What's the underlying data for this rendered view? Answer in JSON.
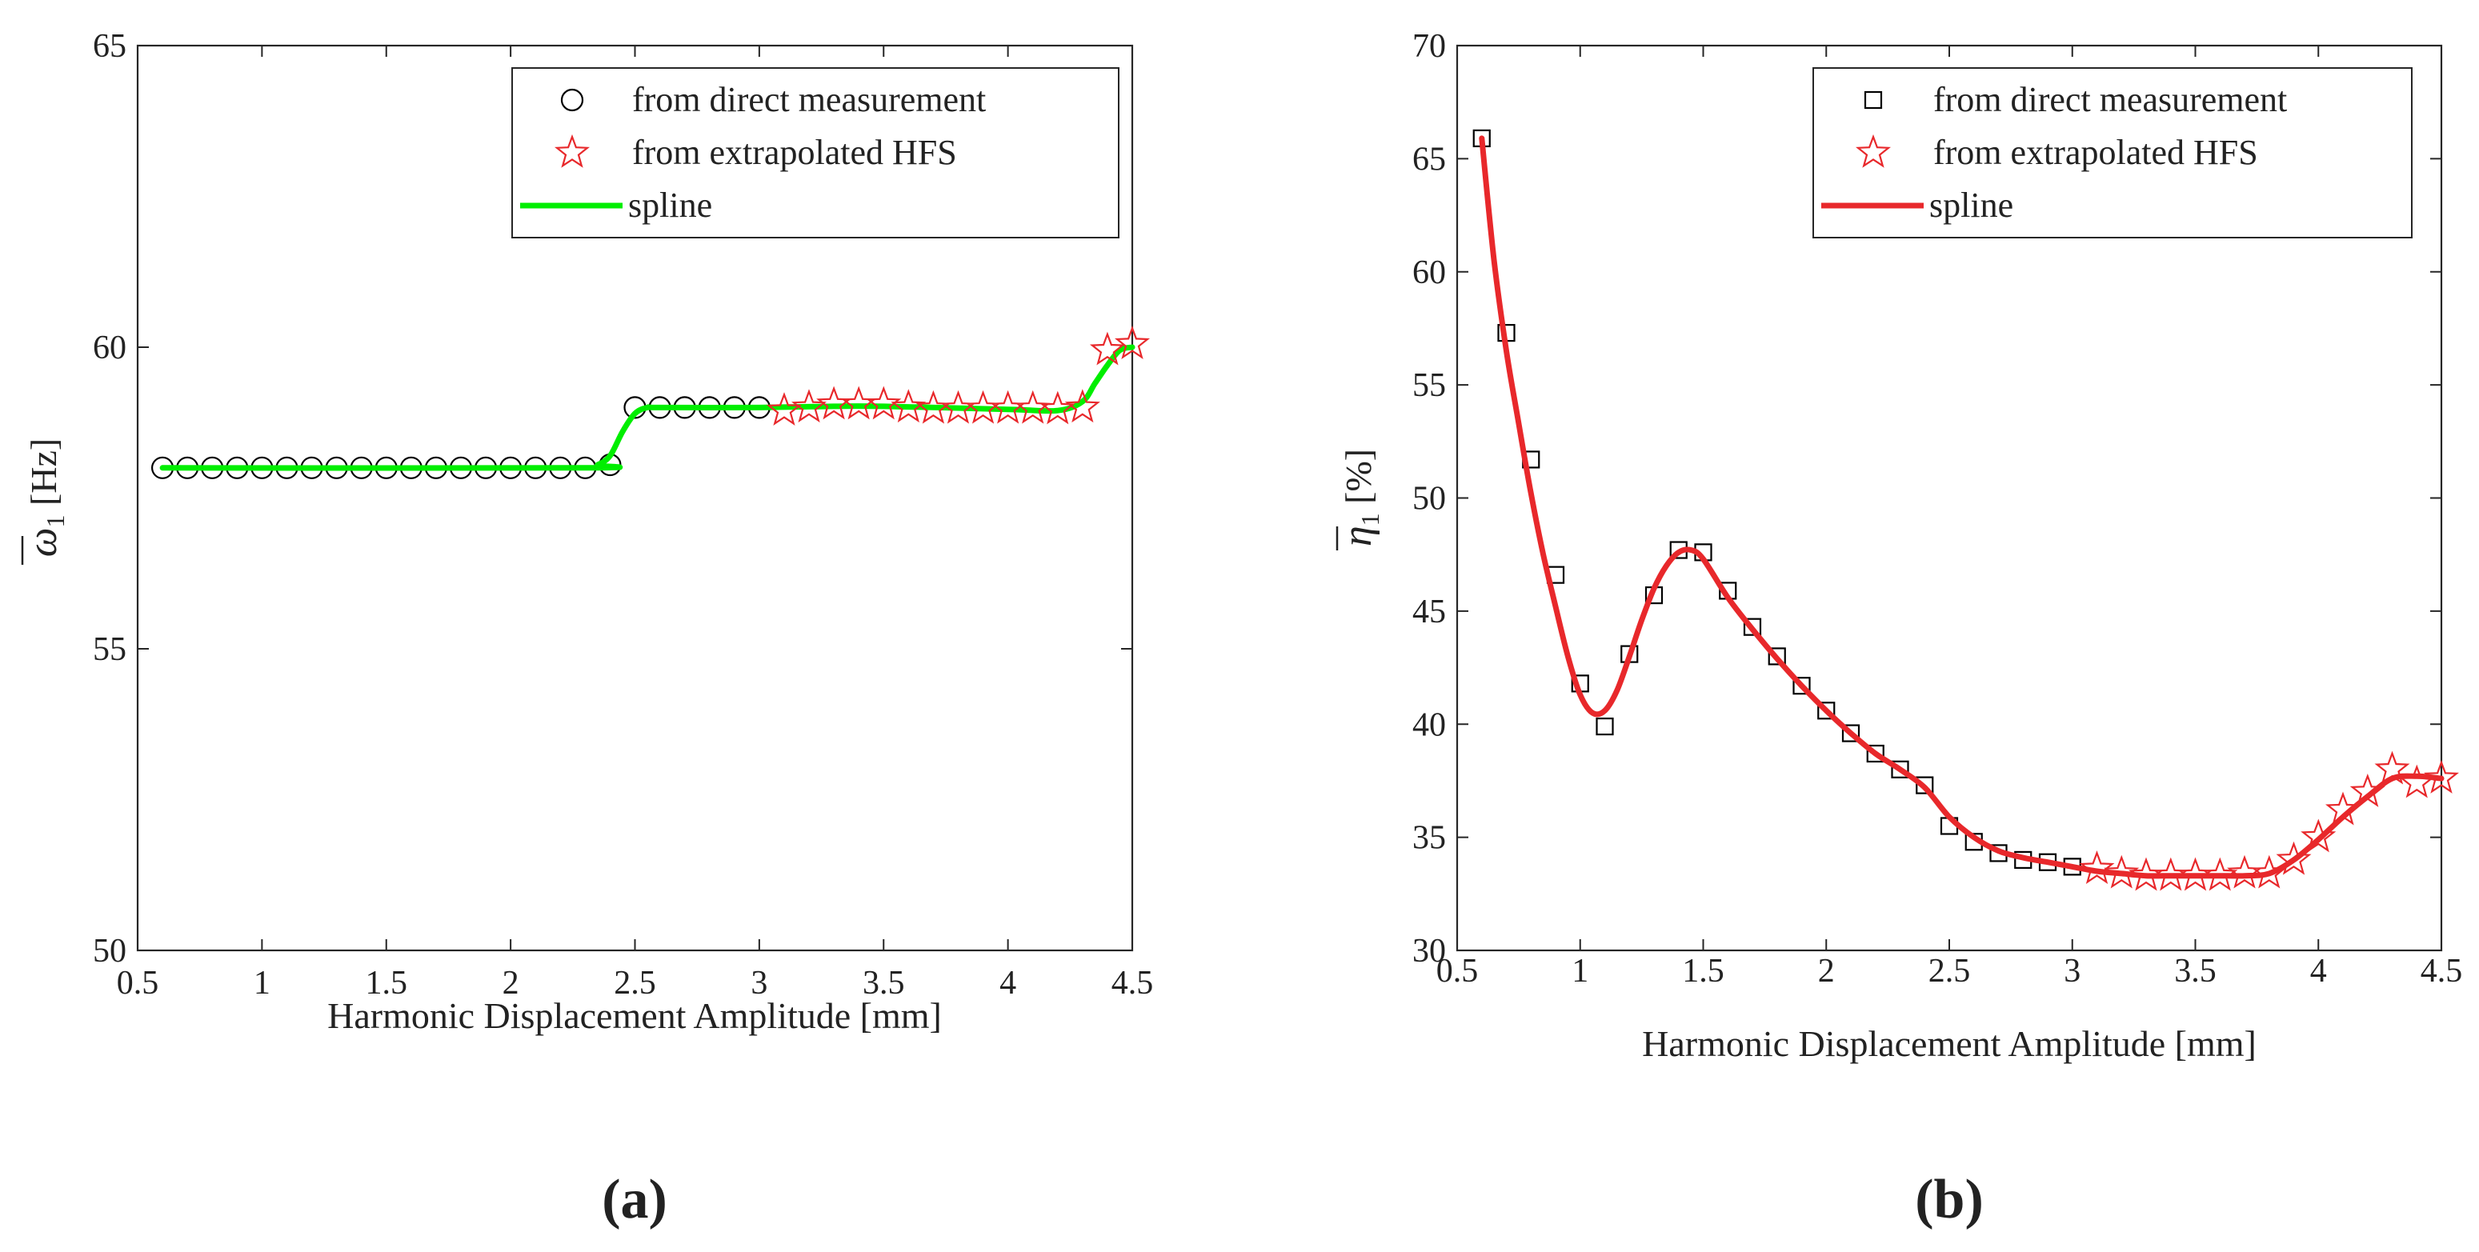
{
  "chart_data": [
    {
      "type": "line",
      "panel_label": "(a)",
      "xlabel": "Harmonic Displacement Amplitude [mm]",
      "ylabel_symbol": "ω",
      "ylabel_sub": "1",
      "ylabel_unit": "[Hz]",
      "xlim": [
        0.5,
        4.5
      ],
      "ylim": [
        50,
        65
      ],
      "xticks": [
        0.5,
        1,
        1.5,
        2,
        2.5,
        3,
        3.5,
        4,
        4.5
      ],
      "xtick_labels": [
        "0.5",
        "1",
        "1.5",
        "2",
        "2.5",
        "3",
        "3.5",
        "4",
        "4.5"
      ],
      "yticks": [
        50,
        55,
        60,
        65
      ],
      "ytick_labels": [
        "50",
        "55",
        "60",
        "65"
      ],
      "legend_position": "top-right",
      "legend": [
        "from direct measurement",
        "from extrapolated HFS",
        "spline"
      ],
      "colors": {
        "spline": "#00ee00",
        "stars": "#e8282b",
        "markers": "#000000"
      },
      "series": [
        {
          "name": "from direct measurement",
          "marker": "circle",
          "x": [
            0.6,
            0.7,
            0.8,
            0.9,
            1.0,
            1.1,
            1.2,
            1.3,
            1.4,
            1.5,
            1.6,
            1.7,
            1.8,
            1.9,
            2.0,
            2.1,
            2.2,
            2.3,
            2.4,
            2.5,
            2.6,
            2.7,
            2.8,
            2.9,
            3.0
          ],
          "y": [
            58,
            58,
            58,
            58,
            58,
            58,
            58,
            58,
            58,
            58,
            58,
            58,
            58,
            58,
            58,
            58,
            58,
            58,
            58.05,
            59,
            59,
            59,
            59,
            59,
            59
          ]
        },
        {
          "name": "from extrapolated HFS",
          "marker": "star",
          "x": [
            3.1,
            3.2,
            3.3,
            3.4,
            3.5,
            3.6,
            3.7,
            3.8,
            3.9,
            4.0,
            4.1,
            4.2,
            4.3,
            4.4,
            4.5
          ],
          "y": [
            58.95,
            59.0,
            59.05,
            59.05,
            59.05,
            59.0,
            58.98,
            58.98,
            58.98,
            58.98,
            58.98,
            58.97,
            59.0,
            59.95,
            60.05
          ]
        },
        {
          "name": "spline",
          "marker": "line",
          "x": [
            0.6,
            2.3,
            2.35,
            2.4,
            2.45,
            2.5,
            2.55,
            2.6,
            3.0,
            3.3,
            3.5,
            4.0,
            4.2,
            4.3,
            4.35,
            4.4,
            4.45,
            4.5
          ],
          "y": [
            58,
            58,
            58.05,
            58.2,
            58.6,
            58.9,
            59.0,
            59.0,
            59.0,
            59.02,
            59.02,
            58.97,
            58.95,
            59.1,
            59.4,
            59.7,
            59.95,
            60.0
          ]
        }
      ]
    },
    {
      "type": "line",
      "panel_label": "(b)",
      "xlabel": "Harmonic Displacement Amplitude [mm]",
      "ylabel_symbol": "η",
      "ylabel_sub": "1",
      "ylabel_unit": "[%]",
      "xlim": [
        0.5,
        4.5
      ],
      "ylim": [
        30,
        70
      ],
      "xticks": [
        0.5,
        1,
        1.5,
        2,
        2.5,
        3,
        3.5,
        4,
        4.5
      ],
      "xtick_labels": [
        "0.5",
        "1",
        "1.5",
        "2",
        "2.5",
        "3",
        "3.5",
        "4",
        "4.5"
      ],
      "yticks": [
        30,
        35,
        40,
        45,
        50,
        55,
        60,
        65,
        70
      ],
      "ytick_labels": [
        "30",
        "35",
        "40",
        "45",
        "50",
        "55",
        "60",
        "65",
        "70"
      ],
      "legend_position": "top-right",
      "legend": [
        "from direct measurement",
        "from extrapolated HFS",
        "spline"
      ],
      "colors": {
        "spline": "#e8282b",
        "stars": "#e8282b",
        "markers": "#000000"
      },
      "series": [
        {
          "name": "from direct measurement",
          "marker": "square",
          "x": [
            0.6,
            0.7,
            0.8,
            0.9,
            1.0,
            1.1,
            1.2,
            1.3,
            1.4,
            1.5,
            1.6,
            1.7,
            1.8,
            1.9,
            2.0,
            2.1,
            2.2,
            2.3,
            2.4,
            2.5,
            2.6,
            2.7,
            2.8,
            2.9,
            3.0
          ],
          "y": [
            65.9,
            57.3,
            51.7,
            46.6,
            41.8,
            39.9,
            43.1,
            45.7,
            47.7,
            47.6,
            45.9,
            44.3,
            43.0,
            41.7,
            40.6,
            39.6,
            38.7,
            38.0,
            37.3,
            35.5,
            34.8,
            34.3,
            34.0,
            33.9,
            33.7
          ]
        },
        {
          "name": "from extrapolated HFS",
          "marker": "star",
          "x": [
            3.1,
            3.2,
            3.3,
            3.4,
            3.5,
            3.6,
            3.7,
            3.8,
            3.9,
            4.0,
            4.1,
            4.2,
            4.3,
            4.4,
            4.5
          ],
          "y": [
            33.6,
            33.4,
            33.3,
            33.3,
            33.3,
            33.3,
            33.4,
            33.4,
            34.0,
            35.0,
            36.2,
            37.0,
            38.0,
            37.4,
            37.6
          ]
        },
        {
          "name": "spline",
          "marker": "line",
          "x": [
            0.6,
            0.65,
            0.7,
            0.75,
            0.8,
            0.85,
            0.9,
            0.95,
            1.0,
            1.05,
            1.1,
            1.15,
            1.2,
            1.25,
            1.3,
            1.35,
            1.4,
            1.45,
            1.5,
            1.6,
            1.7,
            1.8,
            1.9,
            2.0,
            2.1,
            2.2,
            2.3,
            2.4,
            2.5,
            2.6,
            2.7,
            2.8,
            2.9,
            3.0,
            3.1,
            3.2,
            3.3,
            3.4,
            3.5,
            3.6,
            3.7,
            3.8,
            3.9,
            4.0,
            4.1,
            4.2,
            4.3,
            4.4,
            4.5
          ],
          "y": [
            65.9,
            60.5,
            56.5,
            53.3,
            50.2,
            47.5,
            45.2,
            43.0,
            41.3,
            40.5,
            40.6,
            41.5,
            43.0,
            44.6,
            46.0,
            47.0,
            47.6,
            47.7,
            47.3,
            45.6,
            44.2,
            42.9,
            41.7,
            40.6,
            39.6,
            38.7,
            38.0,
            37.2,
            35.9,
            35.0,
            34.4,
            34.1,
            33.9,
            33.7,
            33.5,
            33.4,
            33.3,
            33.3,
            33.3,
            33.3,
            33.3,
            33.4,
            34.0,
            34.9,
            35.9,
            36.8,
            37.6,
            37.7,
            37.6
          ]
        }
      ]
    }
  ]
}
